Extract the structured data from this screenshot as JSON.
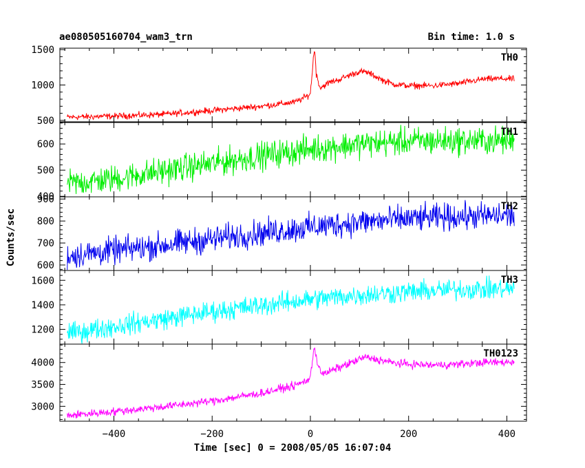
{
  "header": {
    "title": "ae080505160704_wam3_trn",
    "bin_time": "Bin time: 1.0 s"
  },
  "xlabel": "Time [sec] 0 = 2008/05/05 16:07:04",
  "ylabel": "Counts/sec",
  "chart_data": {
    "type": "line",
    "title": "ae080505160704_wam3_trn",
    "xlabel": "Time [sec] 0 = 2008/05/05 16:07:04",
    "ylabel": "Counts/sec",
    "xlim": [
      -510,
      440
    ],
    "xticks": [
      "−400",
      "−200",
      "0",
      "200",
      "400"
    ],
    "xtick_values": [
      -400,
      -200,
      0,
      200,
      400
    ],
    "x_range": [
      -495,
      415
    ],
    "grid": false,
    "panels": [
      {
        "name": "TH0",
        "color": "#ff0000",
        "ylim": [
          480,
          1520
        ],
        "yticks": [
          500,
          1000,
          1500
        ],
        "x": [
          -495,
          -400,
          -300,
          -200,
          -100,
          -30,
          -5,
          0,
          3,
          6,
          9,
          12,
          20,
          40,
          60,
          80,
          100,
          115,
          130,
          150,
          170,
          200,
          250,
          300,
          350,
          380,
          415
        ],
        "values": [
          545,
          560,
          585,
          640,
          700,
          760,
          850,
          880,
          1120,
          1380,
          1500,
          1150,
          960,
          1040,
          1080,
          1140,
          1190,
          1180,
          1130,
          1060,
          1010,
          990,
          990,
          1020,
          1080,
          1090,
          1085
        ],
        "noise": 22
      },
      {
        "name": "TH1",
        "color": "#00ee00",
        "ylim": [
          398,
          682
        ],
        "yticks": [
          400,
          500,
          600
        ],
        "x": [
          -495,
          -400,
          -300,
          -200,
          -100,
          0,
          100,
          200,
          300,
          415
        ],
        "values": [
          448,
          466,
          497,
          525,
          555,
          580,
          600,
          610,
          612,
          612
        ],
        "noise": 26
      },
      {
        "name": "TH2",
        "color": "#0000ee",
        "ylim": [
          575,
          910
        ],
        "yticks": [
          600,
          700,
          800,
          900
        ],
        "x": [
          -495,
          -400,
          -300,
          -200,
          -100,
          0,
          100,
          200,
          300,
          415
        ],
        "values": [
          640,
          665,
          690,
          718,
          745,
          772,
          795,
          810,
          820,
          825
        ],
        "noise": 30
      },
      {
        "name": "TH3",
        "color": "#00ffff",
        "ylim": [
          1080,
          1680
        ],
        "yticks": [
          1200,
          1400,
          1600
        ],
        "x": [
          -495,
          -400,
          -300,
          -200,
          -100,
          0,
          100,
          200,
          300,
          415
        ],
        "values": [
          1165,
          1225,
          1285,
          1345,
          1395,
          1445,
          1480,
          1505,
          1525,
          1530
        ],
        "noise": 42
      },
      {
        "name": "TH0123",
        "color": "#ff00ff",
        "ylim": [
          2660,
          4420
        ],
        "yticks": [
          3000,
          3500,
          4000
        ],
        "x": [
          -495,
          -400,
          -300,
          -200,
          -100,
          -30,
          -5,
          0,
          3,
          6,
          9,
          14,
          25,
          50,
          80,
          110,
          140,
          170,
          200,
          250,
          300,
          350,
          415
        ],
        "values": [
          2790,
          2880,
          2990,
          3120,
          3300,
          3480,
          3600,
          3660,
          3900,
          4250,
          4350,
          4000,
          3720,
          3850,
          3980,
          4120,
          4060,
          3990,
          3960,
          3940,
          3960,
          4000,
          4010
        ],
        "noise": 45
      }
    ]
  }
}
